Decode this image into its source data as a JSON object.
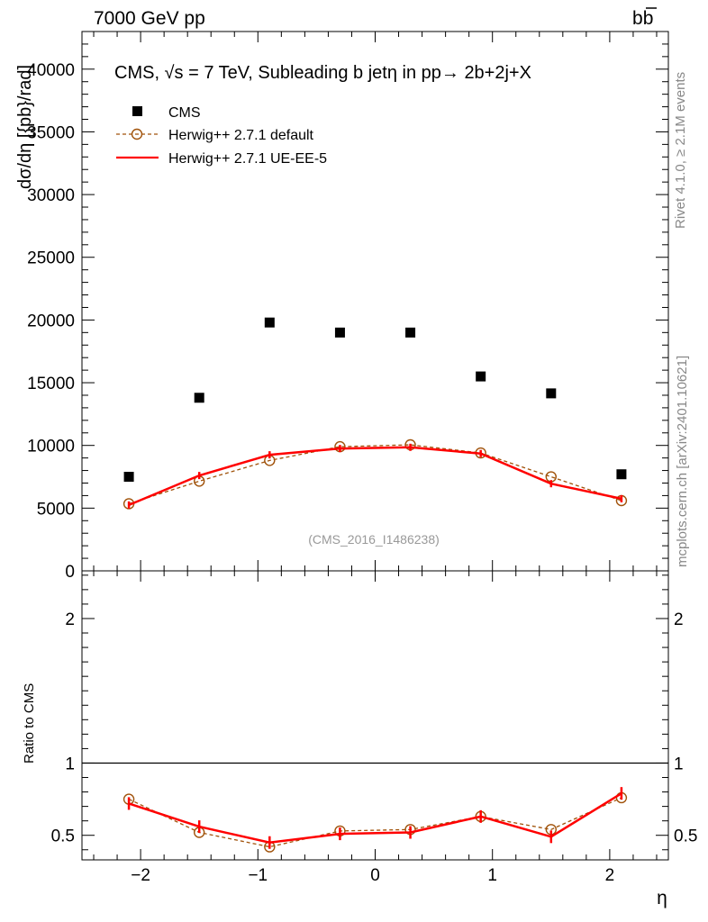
{
  "header": {
    "left": "7000 GeV pp",
    "right_main": "b",
    "right_bar": "b"
  },
  "side_labels": {
    "rivet": "Rivet 4.1.0, ≥ 2.1M events",
    "mcplots": "mcplots.cern.ch [arXiv:2401.10621]"
  },
  "watermark": "(CMS_2016_I1486238)",
  "legend": {
    "title": "CMS, √s = 7 TeV, Subleading b jetη in pp→  2b+2j+X",
    "entries": [
      "CMS",
      "Herwig++ 2.7.1 default",
      "Herwig++ 2.7.1 UE-EE-5"
    ]
  },
  "colors": {
    "cms": "#000000",
    "default": "#a0520a",
    "ue": "#ff0000"
  },
  "chart_data": [
    {
      "type": "scatter",
      "panel": "main",
      "xlabel": "η",
      "ylabel": "dσ/dη [{pb}/rad]",
      "xlim": [
        -2.5,
        2.5
      ],
      "ylim": [
        0,
        43000
      ],
      "x_ticks": [
        -2,
        -1,
        0,
        1,
        2
      ],
      "x_tick_labels": [
        "−2",
        "−1",
        "0",
        "1",
        "2"
      ],
      "y_ticks": [
        0,
        5000,
        10000,
        15000,
        20000,
        25000,
        30000,
        35000,
        40000
      ],
      "y_tick_labels": [
        "0",
        "5000",
        "10000",
        "15000",
        "20000",
        "25000",
        "30000",
        "35000",
        "40000"
      ],
      "x": [
        -2.1,
        -1.5,
        -0.9,
        -0.3,
        0.3,
        0.9,
        1.5,
        2.1
      ],
      "series": [
        {
          "name": "CMS",
          "values": [
            7500,
            13800,
            19800,
            19000,
            19000,
            15500,
            14150,
            7700
          ]
        },
        {
          "name": "Herwig++ 2.7.1 default",
          "values": [
            5350,
            7150,
            8800,
            9900,
            10050,
            9400,
            7500,
            5600
          ]
        },
        {
          "name": "Herwig++ 2.7.1 UE-EE-5",
          "values": [
            5250,
            7600,
            9250,
            9750,
            9850,
            9350,
            6950,
            5750
          ]
        }
      ]
    },
    {
      "type": "line",
      "panel": "ratio",
      "xlabel": "η",
      "ylabel": "Ratio to CMS",
      "xlim": [
        -2.5,
        2.5
      ],
      "ylim": [
        0.33,
        2.33
      ],
      "y_ticks": [
        0.5,
        1,
        2
      ],
      "y_tick_labels": [
        "0.5",
        "1",
        "2"
      ],
      "x": [
        -2.1,
        -1.5,
        -0.9,
        -0.3,
        0.3,
        0.9,
        1.5,
        2.1
      ],
      "series": [
        {
          "name": "Herwig++ 2.7.1 default",
          "values": [
            0.75,
            0.52,
            0.42,
            0.53,
            0.54,
            0.63,
            0.54,
            0.76
          ]
        },
        {
          "name": "Herwig++ 2.7.1 UE-EE-5",
          "values": [
            0.72,
            0.56,
            0.45,
            0.51,
            0.52,
            0.63,
            0.49,
            0.79
          ]
        }
      ]
    }
  ]
}
